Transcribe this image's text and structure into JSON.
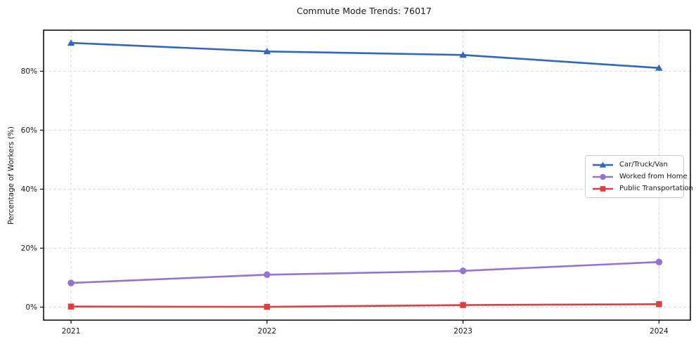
{
  "chart_data": {
    "type": "line",
    "title": "Commute Mode Trends: 76017",
    "xlabel": "",
    "ylabel": "Percentage of Workers (%)",
    "x": [
      2021,
      2022,
      2023,
      2024
    ],
    "x_tick_labels": [
      "2021",
      "2022",
      "2023",
      "2024"
    ],
    "y_ticks": [
      0,
      20,
      40,
      60,
      80
    ],
    "y_tick_labels": [
      "0%",
      "20%",
      "40%",
      "60%",
      "80%"
    ],
    "xlim": [
      2020.86,
      2024.16
    ],
    "ylim": [
      -4.4,
      93.9
    ],
    "grid": true,
    "grid_style": "dashed",
    "legend_position": "center-right",
    "colors": {
      "grid": "#d9d9d9",
      "spine": "#000000",
      "text": "#1a1a1a"
    },
    "series": [
      {
        "name": "Car/Truck/Van",
        "color": "#2f66bf",
        "marker": "triangle",
        "values": [
          89.6,
          86.7,
          85.5,
          81.1
        ]
      },
      {
        "name": "Worked from Home",
        "color": "#9673d2",
        "marker": "circle",
        "values": [
          8.2,
          11.0,
          12.3,
          15.3
        ]
      },
      {
        "name": "Public Transportation",
        "color": "#df3e3c",
        "marker": "square",
        "values": [
          0.2,
          0.1,
          0.7,
          1.0
        ]
      }
    ]
  }
}
